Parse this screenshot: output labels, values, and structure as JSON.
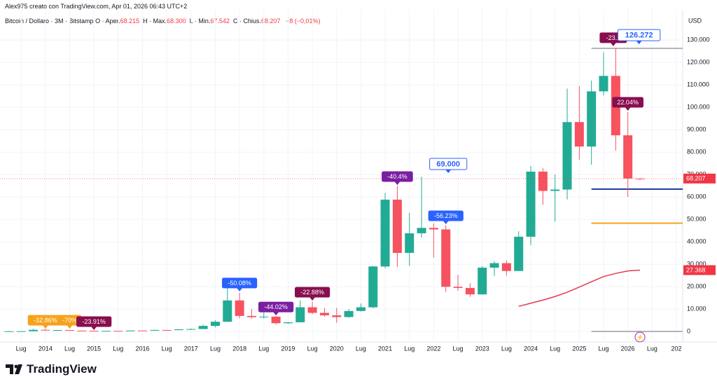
{
  "header": {
    "author": "Alex975 creato con TradingView.com, Apr 01, 2026 06:43 UTC+2",
    "symbol": "Bitcoin / Dollaro · 3M · Bitstamp",
    "ohlc": [
      {
        "key": "O · Aper.",
        "value": "68.215"
      },
      {
        "key": "H · Max.",
        "value": "68.300"
      },
      {
        "key": "L · Min.",
        "value": "67.542"
      },
      {
        "key": "C · Chius.",
        "value": "68.207"
      }
    ],
    "change": "−8 (−0,01%)"
  },
  "footer": {
    "brand": "TradingView"
  },
  "chart_data": {
    "type": "candlestick",
    "currency": "USD",
    "x": [
      2013.25,
      2013.5,
      2013.75,
      2014,
      2014.25,
      2014.5,
      2014.75,
      2015,
      2015.25,
      2015.5,
      2015.75,
      2016,
      2016.25,
      2016.5,
      2016.75,
      2017,
      2017.25,
      2017.5,
      2017.75,
      2018,
      2018.25,
      2018.5,
      2018.75,
      2019,
      2019.25,
      2019.5,
      2019.75,
      2020,
      2020.25,
      2020.5,
      2020.75,
      2021,
      2021.25,
      2021.5,
      2021.75,
      2022,
      2022.25,
      2022.5,
      2022.75,
      2023,
      2023.25,
      2023.5,
      2023.75,
      2024,
      2024.25,
      2024.5,
      2024.75,
      2025,
      2025.25,
      2025.5,
      2025.75,
      2026,
      2026.25
    ],
    "open": [
      93,
      97,
      128,
      732,
      457,
      640,
      386,
      320,
      244,
      263,
      236,
      430,
      416,
      673,
      609,
      963,
      1079,
      2480,
      4338,
      13850,
      6928,
      6390,
      6626,
      3693,
      4100,
      10800,
      8300,
      7200,
      6420,
      9140,
      10780,
      28990,
      58800,
      35040,
      43800,
      46200,
      45530,
      19920,
      19420,
      16540,
      28470,
      30470,
      26970,
      42270,
      71300,
      62700,
      63300,
      93400,
      82500,
      107100,
      114000,
      87500,
      68215
    ],
    "high": [
      266,
      150,
      1163,
      1165,
      680,
      650,
      460,
      320,
      265,
      315,
      500,
      460,
      780,
      700,
      980,
      1350,
      3000,
      5000,
      19666,
      17176,
      9990,
      8500,
      6840,
      4200,
      13880,
      13200,
      10500,
      10500,
      10050,
      12470,
      29300,
      61780,
      64900,
      52900,
      69000,
      48200,
      47400,
      25200,
      21500,
      29200,
      31400,
      31800,
      44700,
      73800,
      72800,
      70000,
      108300,
      109500,
      111900,
      124500,
      126272,
      97900,
      68300
    ],
    "low": [
      65,
      65,
      120,
      410,
      340,
      360,
      275,
      152,
      200,
      199,
      236,
      350,
      415,
      470,
      600,
      750,
      1070,
      1830,
      4338,
      5873,
      5755,
      5859,
      3150,
      3350,
      4050,
      7700,
      6500,
      3850,
      6150,
      8900,
      10400,
      28200,
      28800,
      29300,
      41900,
      32950,
      17600,
      18150,
      15480,
      16500,
      24800,
      24900,
      26970,
      38500,
      56500,
      49000,
      58900,
      76600,
      74400,
      105300,
      80600,
      60000,
      67542
    ],
    "close": [
      97,
      128,
      732,
      457,
      640,
      386,
      320,
      244,
      263,
      236,
      430,
      416,
      673,
      609,
      963,
      1079,
      2480,
      4338,
      13850,
      6928,
      6390,
      6626,
      3693,
      4100,
      10800,
      8300,
      7200,
      6420,
      9140,
      10780,
      28990,
      58800,
      35040,
      43800,
      46200,
      45530,
      19920,
      19420,
      16540,
      28470,
      30470,
      26970,
      42270,
      71300,
      62700,
      63300,
      93400,
      82500,
      107100,
      114000,
      87500,
      68215,
      68207
    ],
    "up_color": "#22ab94",
    "down_color": "#f7525f",
    "xlim": [
      2013.18,
      2027.13
    ],
    "xticks": [
      {
        "value": 2013.5,
        "label": "Lug"
      },
      2014,
      {
        "value": 2014.5,
        "label": "Lug"
      },
      2015,
      {
        "value": 2015.5,
        "label": "Lug"
      },
      2016,
      {
        "value": 2016.5,
        "label": "Lug"
      },
      2017,
      {
        "value": 2017.5,
        "label": "Lug"
      },
      2018,
      {
        "value": 2018.5,
        "label": "Lug"
      },
      2019,
      {
        "value": 2019.5,
        "label": "Lug"
      },
      2020,
      {
        "value": 2020.5,
        "label": "Lug"
      },
      2021,
      {
        "value": 2021.5,
        "label": "Lug"
      },
      2022,
      {
        "value": 2022.5,
        "label": "Lug"
      },
      2023,
      {
        "value": 2023.5,
        "label": "Lug"
      },
      2024,
      {
        "value": 2024.5,
        "label": "Lug"
      },
      2025,
      {
        "value": 2025.5,
        "label": "Lug"
      },
      2026,
      {
        "value": 2026.5,
        "label": "Lug"
      },
      {
        "value": 2027,
        "label": "202"
      }
    ],
    "ylim": [
      -5300,
      141600
    ],
    "yticks": [
      0,
      {
        "value": 10000,
        "label": "10.000"
      },
      {
        "value": 20000,
        "label": "20.000"
      },
      {
        "value": 30000,
        "label": "30.000"
      },
      {
        "value": 40000,
        "label": "40.000"
      },
      {
        "value": 50000,
        "label": "50.000"
      },
      {
        "value": 60000,
        "label": "60.000"
      },
      {
        "value": 70000,
        "label": "70.000"
      },
      {
        "value": 80000,
        "label": "80.000"
      },
      {
        "value": 90000,
        "label": "90.000"
      },
      {
        "value": 100000,
        "label": "100.000"
      },
      {
        "value": 110000,
        "label": "110.000"
      },
      {
        "value": 120000,
        "label": "120.000"
      },
      {
        "value": 130000,
        "label": "130.000"
      }
    ],
    "grid": true,
    "moving_average": {
      "color": "#e53950",
      "x": [
        2023.75,
        2024,
        2024.25,
        2024.5,
        2024.75,
        2025,
        2025.25,
        2025.5,
        2025.75,
        2026,
        2026.25
      ],
      "values": [
        11200,
        12600,
        14000,
        15600,
        17500,
        19800,
        22200,
        24500,
        25900,
        27000,
        27368
      ]
    },
    "levels": [
      {
        "value": 126272,
        "color": "#b2b5be",
        "from": 2025.25
      },
      {
        "value": 63500,
        "color": "#1e3a9c",
        "from": 2025.25
      },
      {
        "value": 48300,
        "color": "#f7a21b",
        "from": 2025.25
      },
      {
        "value": 0,
        "color": "#b2b5be",
        "from": 2025.25
      }
    ],
    "price_tags": [
      {
        "value": 68207,
        "label": "68.207",
        "color": "#f23645"
      },
      {
        "value": 27368,
        "label": "27.368",
        "color": "#f23645"
      }
    ],
    "annotations": [
      {
        "text": "-32.86%",
        "x": 2014,
        "y": 5000,
        "color": "#f7a21b",
        "style": "box"
      },
      {
        "text": "-70%",
        "x": 2014.5,
        "y": 5000,
        "color": "#f7a21b",
        "style": "box"
      },
      {
        "text": "-23.91%",
        "x": 2015,
        "y": 4400,
        "color": "#880e4f",
        "style": "box"
      },
      {
        "text": "-50.08%",
        "x": 2018,
        "y": 21600,
        "color": "#2962ff",
        "style": "box"
      },
      {
        "text": "-44.02%",
        "x": 2018.75,
        "y": 10900,
        "color": "#7b1fa2",
        "style": "box"
      },
      {
        "text": "-22.88%",
        "x": 2019.5,
        "y": 17500,
        "color": "#880e4f",
        "style": "box"
      },
      {
        "text": "-40.4%",
        "x": 2021.25,
        "y": 69100,
        "color": "#7b1fa2",
        "style": "box"
      },
      {
        "text": "69.000",
        "x": 2022.3,
        "y": 74700,
        "color": "#2962ff",
        "style": "outline"
      },
      {
        "text": "-56.23%",
        "x": 2022.25,
        "y": 51600,
        "color": "#2962ff",
        "style": "box"
      },
      {
        "text": "-23.2",
        "x": 2025.7,
        "y": 131000,
        "color": "#880e4f",
        "style": "box"
      },
      {
        "text": "126.272",
        "x": 2026.23,
        "y": 132200,
        "color": "#2962ff",
        "style": "outline"
      },
      {
        "text": "22.04%",
        "x": 2026,
        "y": 102200,
        "color": "#880e4f",
        "style": "box"
      }
    ]
  }
}
